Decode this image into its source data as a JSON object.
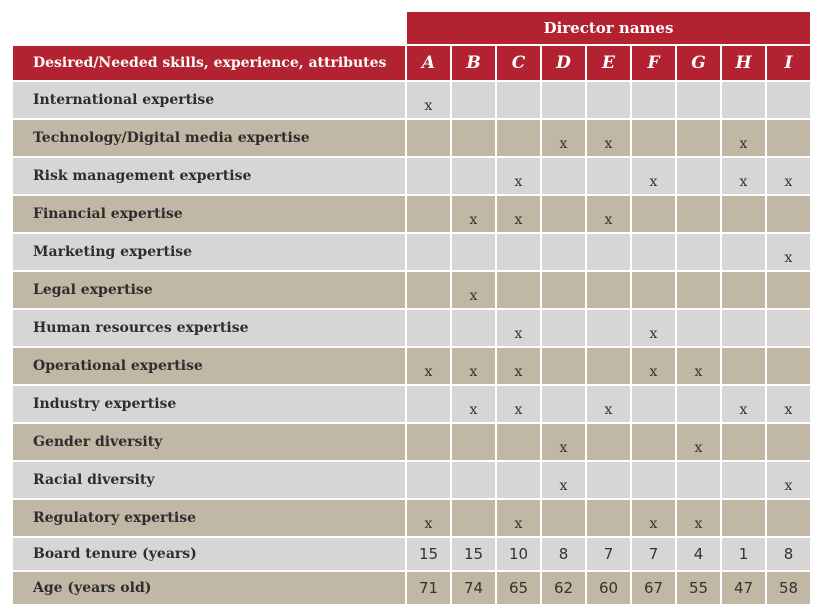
{
  "table": {
    "group_header": "Director names",
    "row_header": "Desired/Needed skills, experience, attributes",
    "directors": [
      "A",
      "B",
      "C",
      "D",
      "E",
      "F",
      "G",
      "H",
      "I"
    ],
    "skill_rows": [
      {
        "label": "International expertise",
        "cells": [
          "x",
          "",
          "",
          "",
          "",
          "",
          "",
          "",
          ""
        ]
      },
      {
        "label": "Technology/Digital media expertise",
        "cells": [
          "",
          "",
          "",
          "x",
          "x",
          "",
          "",
          "x",
          ""
        ]
      },
      {
        "label": "Risk management expertise",
        "cells": [
          "",
          "",
          "x",
          "",
          "",
          "x",
          "",
          "x",
          "x"
        ]
      },
      {
        "label": "Financial expertise",
        "cells": [
          "",
          "x",
          "x",
          "",
          "x",
          "",
          "",
          "",
          ""
        ]
      },
      {
        "label": "Marketing expertise",
        "cells": [
          "",
          "",
          "",
          "",
          "",
          "",
          "",
          "",
          "x"
        ]
      },
      {
        "label": "Legal expertise",
        "cells": [
          "",
          "x",
          "",
          "",
          "",
          "",
          "",
          "",
          ""
        ]
      },
      {
        "label": "Human resources expertise",
        "cells": [
          "",
          "",
          "x",
          "",
          "",
          "x",
          "",
          "",
          ""
        ]
      },
      {
        "label": "Operational expertise",
        "cells": [
          "x",
          "x",
          "x",
          "",
          "",
          "x",
          "x",
          "",
          ""
        ]
      },
      {
        "label": "Industry expertise",
        "cells": [
          "",
          "x",
          "x",
          "",
          "x",
          "",
          "",
          "x",
          "x"
        ]
      },
      {
        "label": "Gender diversity",
        "cells": [
          "",
          "",
          "",
          "x",
          "",
          "",
          "x",
          "",
          ""
        ]
      },
      {
        "label": "Racial diversity",
        "cells": [
          "",
          "",
          "",
          "x",
          "",
          "",
          "",
          "",
          "x"
        ]
      },
      {
        "label": "Regulatory expertise",
        "cells": [
          "x",
          "",
          "x",
          "",
          "",
          "x",
          "x",
          "",
          ""
        ]
      }
    ],
    "numeric_rows": [
      {
        "label": "Board tenure (years)",
        "cells": [
          "15",
          "15",
          "10",
          "8",
          "7",
          "7",
          "4",
          "1",
          "8"
        ]
      },
      {
        "label": "Age (years old)",
        "cells": [
          "71",
          "74",
          "65",
          "62",
          "60",
          "67",
          "55",
          "47",
          "58"
        ]
      }
    ]
  },
  "colors": {
    "header_red": "#b22231",
    "row_light": "#d7d6d5",
    "row_dark": "#c0b7a4"
  }
}
